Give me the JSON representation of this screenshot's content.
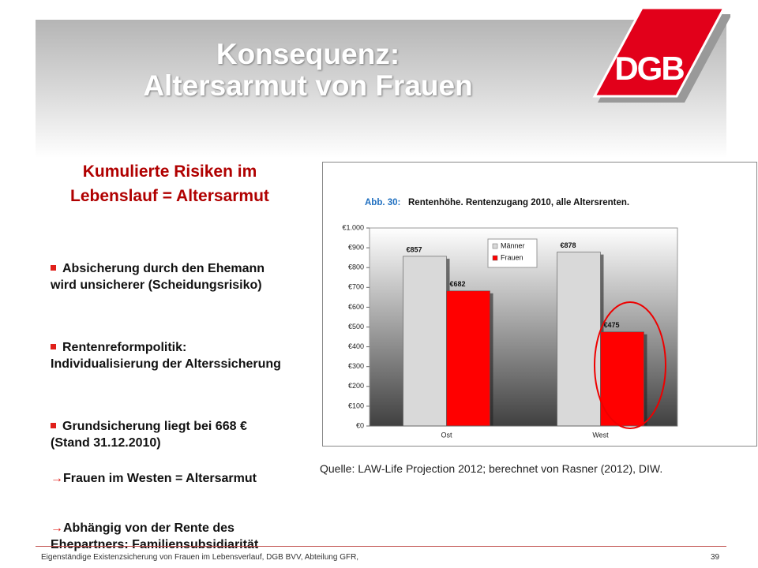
{
  "header": {
    "title_line1": "Konsequenz:",
    "title_line2": "Altersarmut von Frauen",
    "logo": "DGB"
  },
  "left": {
    "heading": "Kumulierte Risiken im Lebenslauf = Altersarmut",
    "bullets": [
      "Absicherung durch den Ehemann wird unsicherer (Scheidungsrisiko)",
      "Rentenreformpolitik: Individualisierung der Alterssicherung",
      "Grundsicherung liegt bei 668 € (Stand 31.12.2010)"
    ],
    "arrows": [
      "Frauen im Westen = Altersarmut",
      "Abhängig von der Rente des Ehepartners: Familiensubsidiarität"
    ]
  },
  "chart": {
    "type": "bar",
    "title_prefix": "Abb. 30:",
    "title": "Rentenhöhe.  Rentenzugang 2010, alle Altersrenten.",
    "categories": [
      "Ost",
      "West"
    ],
    "series": [
      {
        "name": "Männer",
        "color": "#d9d9d9",
        "values": [
          857,
          878
        ],
        "value_labels": [
          "€857",
          "€878"
        ]
      },
      {
        "name": "Frauen",
        "color": "#ff0000",
        "values": [
          682,
          475
        ],
        "value_labels": [
          "€682",
          "€475"
        ]
      }
    ],
    "ylim": [
      0,
      1000
    ],
    "yticks": [
      {
        "value": 0,
        "label": "€0"
      },
      {
        "value": 100,
        "label": "€100"
      },
      {
        "value": 200,
        "label": "€200"
      },
      {
        "value": 300,
        "label": "€300"
      },
      {
        "value": 400,
        "label": "€400"
      },
      {
        "value": 500,
        "label": "€500"
      },
      {
        "value": 600,
        "label": "€600"
      },
      {
        "value": 700,
        "label": "€700"
      },
      {
        "value": 800,
        "label": "€800"
      },
      {
        "value": 900,
        "label": "€900"
      },
      {
        "value": 1000,
        "label": "€1.000"
      }
    ],
    "legend": "top-center"
  },
  "source": "Quelle: LAW-Life Projection 2012; berechnet von Rasner (2012), DIW.",
  "footer": {
    "text": "Eigenständige Existenzsicherung von Frauen im Lebensverlauf, DGB BVV, Abteilung GFR,",
    "page": "39"
  }
}
